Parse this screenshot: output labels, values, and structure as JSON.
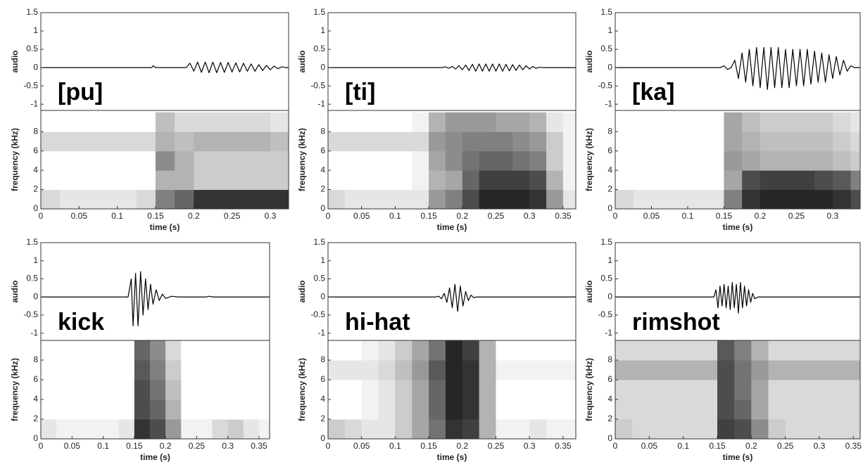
{
  "chart_data": [
    {
      "type": "line",
      "annotation": "[pu]",
      "ylabel": "audio",
      "color": "#000000",
      "xlim": [
        0,
        0.324
      ],
      "ylim": [
        -1.17,
        1.5
      ],
      "yticks": [
        -1,
        -0.5,
        0,
        0.5,
        1,
        1.5
      ],
      "x": [
        0,
        0.145,
        0.147,
        0.15,
        0.19,
        0.195,
        0.2,
        0.205,
        0.21,
        0.215,
        0.22,
        0.225,
        0.23,
        0.235,
        0.24,
        0.245,
        0.25,
        0.255,
        0.26,
        0.265,
        0.27,
        0.275,
        0.28,
        0.285,
        0.29,
        0.295,
        0.3,
        0.305,
        0.31,
        0.315,
        0.32,
        0.324
      ],
      "values": [
        0,
        0,
        0.05,
        0,
        0,
        0.12,
        -0.1,
        0.15,
        -0.13,
        0.15,
        -0.14,
        0.15,
        -0.14,
        0.14,
        -0.13,
        0.14,
        -0.12,
        0.13,
        -0.12,
        0.12,
        -0.1,
        0.1,
        -0.1,
        0.08,
        -0.08,
        0.06,
        -0.06,
        0.04,
        -0.03,
        0.02,
        0,
        0
      ]
    },
    {
      "type": "heatmap",
      "ylabel": "frequency (kHz)",
      "xlabel": "time (s)",
      "xlim": [
        0,
        0.324
      ],
      "xticks": [
        0,
        0.05,
        0.1,
        0.15,
        0.2,
        0.25,
        0.3
      ],
      "ylim": [
        0,
        10.2
      ],
      "yticks": [
        0,
        2,
        4,
        6,
        8
      ],
      "xbins": [
        0,
        0.025,
        0.05,
        0.075,
        0.1,
        0.125,
        0.15,
        0.175,
        0.2,
        0.225,
        0.25,
        0.275,
        0.3,
        0.325,
        0.35,
        0.375
      ],
      "ybins": [
        0,
        2,
        4,
        6,
        8,
        10
      ],
      "values": [
        [
          0.15,
          0.1,
          0.1,
          0.1,
          0.1,
          0.15,
          0.5,
          0.6,
          0.8,
          0.8,
          0.8,
          0.8,
          0.8,
          0.6,
          0.3
        ],
        [
          0,
          0,
          0,
          0,
          0,
          0,
          0.3,
          0.3,
          0.2,
          0.2,
          0.2,
          0.2,
          0.2,
          0.1,
          0.05
        ],
        [
          0,
          0,
          0,
          0,
          0,
          0,
          0.45,
          0.3,
          0.2,
          0.2,
          0.2,
          0.2,
          0.2,
          0.1,
          0.05
        ],
        [
          0.15,
          0.15,
          0.15,
          0.15,
          0.15,
          0.15,
          0.3,
          0.25,
          0.3,
          0.3,
          0.3,
          0.3,
          0.25,
          0.15,
          0.05
        ],
        [
          0,
          0,
          0,
          0,
          0,
          0,
          0.25,
          0.15,
          0.15,
          0.15,
          0.15,
          0.15,
          0.1,
          0.1,
          0.05
        ]
      ]
    },
    {
      "type": "line",
      "annotation": "[ti]",
      "ylabel": "audio",
      "color": "#000000",
      "xlim": [
        0,
        0.369
      ],
      "ylim": [
        -1.17,
        1.5
      ],
      "yticks": [
        -1,
        -0.5,
        0,
        0.5,
        1,
        1.5
      ],
      "x": [
        0,
        0.17,
        0.175,
        0.18,
        0.185,
        0.19,
        0.195,
        0.2,
        0.205,
        0.21,
        0.215,
        0.22,
        0.225,
        0.23,
        0.235,
        0.24,
        0.245,
        0.25,
        0.255,
        0.26,
        0.265,
        0.27,
        0.275,
        0.28,
        0.285,
        0.29,
        0.295,
        0.3,
        0.305,
        0.31,
        0.315,
        0.32,
        0.369
      ],
      "values": [
        0,
        0,
        0.02,
        -0.02,
        0.03,
        -0.04,
        0.05,
        -0.06,
        0.07,
        -0.08,
        0.09,
        -0.1,
        0.1,
        -0.1,
        0.1,
        -0.1,
        0.1,
        -0.1,
        0.1,
        -0.1,
        0.09,
        -0.09,
        0.08,
        -0.08,
        0.07,
        -0.06,
        0.05,
        -0.04,
        0.03,
        -0.02,
        0.01,
        0,
        0
      ]
    },
    {
      "type": "heatmap",
      "ylabel": "frequency (kHz)",
      "xlabel": "time (s)",
      "xlim": [
        0,
        0.369
      ],
      "xticks": [
        0,
        0.05,
        0.1,
        0.15,
        0.2,
        0.25,
        0.3,
        0.35
      ],
      "ylim": [
        0,
        10.2
      ],
      "yticks": [
        0,
        2,
        4,
        6,
        8
      ],
      "xbins": [
        0,
        0.025,
        0.05,
        0.075,
        0.1,
        0.125,
        0.15,
        0.175,
        0.2,
        0.225,
        0.25,
        0.275,
        0.3,
        0.325,
        0.35,
        0.375
      ],
      "ybins": [
        0,
        2,
        4,
        6,
        8,
        10
      ],
      "values": [
        [
          0.15,
          0.1,
          0.1,
          0.1,
          0.1,
          0.1,
          0.4,
          0.5,
          0.7,
          0.85,
          0.85,
          0.85,
          0.8,
          0.4,
          0.1
        ],
        [
          0,
          0,
          0,
          0,
          0,
          0.05,
          0.3,
          0.35,
          0.6,
          0.75,
          0.75,
          0.75,
          0.7,
          0.3,
          0.05
        ],
        [
          0,
          0,
          0,
          0,
          0,
          0.05,
          0.35,
          0.45,
          0.55,
          0.6,
          0.6,
          0.55,
          0.5,
          0.2,
          0.05
        ],
        [
          0.15,
          0.15,
          0.15,
          0.15,
          0.15,
          0.15,
          0.4,
          0.45,
          0.5,
          0.5,
          0.5,
          0.45,
          0.4,
          0.2,
          0.05
        ],
        [
          0,
          0,
          0,
          0,
          0,
          0.05,
          0.3,
          0.4,
          0.4,
          0.4,
          0.35,
          0.35,
          0.3,
          0.1,
          0.05
        ]
      ]
    },
    {
      "type": "line",
      "annotation": "[ka]",
      "ylabel": "audio",
      "color": "#000000",
      "xlim": [
        0,
        0.338
      ],
      "ylim": [
        -1.17,
        1.5
      ],
      "yticks": [
        -1,
        -0.5,
        0,
        0.5,
        1,
        1.5
      ],
      "x": [
        0,
        0.145,
        0.15,
        0.155,
        0.16,
        0.165,
        0.17,
        0.175,
        0.18,
        0.185,
        0.19,
        0.195,
        0.2,
        0.205,
        0.21,
        0.215,
        0.22,
        0.225,
        0.23,
        0.235,
        0.24,
        0.245,
        0.25,
        0.255,
        0.26,
        0.265,
        0.27,
        0.275,
        0.28,
        0.285,
        0.29,
        0.295,
        0.3,
        0.305,
        0.31,
        0.315,
        0.32,
        0.325,
        0.33,
        0.338
      ],
      "values": [
        0,
        0,
        0.05,
        -0.05,
        0,
        0.2,
        -0.3,
        0.4,
        -0.4,
        0.5,
        -0.5,
        0.55,
        -0.55,
        0.55,
        -0.6,
        0.55,
        -0.55,
        0.55,
        -0.55,
        0.5,
        -0.55,
        0.5,
        -0.5,
        0.5,
        -0.5,
        0.5,
        -0.45,
        0.45,
        -0.4,
        0.4,
        -0.4,
        0.35,
        -0.3,
        0.3,
        -0.2,
        0.2,
        -0.1,
        0.05,
        0,
        0
      ]
    },
    {
      "type": "heatmap",
      "ylabel": "frequency (kHz)",
      "xlabel": "time (s)",
      "xlim": [
        0,
        0.338
      ],
      "xticks": [
        0,
        0.05,
        0.1,
        0.15,
        0.2,
        0.25,
        0.3
      ],
      "ylim": [
        0,
        10.2
      ],
      "yticks": [
        0,
        2,
        4,
        6,
        8
      ],
      "xbins": [
        0,
        0.025,
        0.05,
        0.075,
        0.1,
        0.125,
        0.15,
        0.175,
        0.2,
        0.225,
        0.25,
        0.275,
        0.3,
        0.325,
        0.35,
        0.375
      ],
      "ybins": [
        0,
        2,
        4,
        6,
        8,
        10
      ],
      "values": [
        [
          0.15,
          0.1,
          0.1,
          0.1,
          0.1,
          0.1,
          0.5,
          0.8,
          0.85,
          0.85,
          0.85,
          0.85,
          0.8,
          0.7,
          0.3
        ],
        [
          0,
          0,
          0,
          0,
          0,
          0,
          0.35,
          0.7,
          0.75,
          0.75,
          0.75,
          0.7,
          0.65,
          0.5,
          0.2
        ],
        [
          0,
          0,
          0,
          0,
          0,
          0,
          0.4,
          0.35,
          0.3,
          0.3,
          0.3,
          0.3,
          0.25,
          0.2,
          0.1
        ],
        [
          0,
          0,
          0,
          0,
          0,
          0,
          0.35,
          0.3,
          0.25,
          0.25,
          0.25,
          0.25,
          0.2,
          0.15,
          0.1
        ],
        [
          0,
          0,
          0,
          0,
          0,
          0,
          0.35,
          0.25,
          0.2,
          0.2,
          0.2,
          0.2,
          0.15,
          0.1,
          0.05
        ]
      ]
    },
    {
      "type": "line",
      "annotation": "kick",
      "ylabel": "audio",
      "color": "#000000",
      "xlim": [
        0,
        0.367
      ],
      "ylim": [
        -1.2,
        1.5
      ],
      "yticks": [
        -1,
        -0.5,
        0,
        0.5,
        1,
        1.5
      ],
      "x": [
        0,
        0.14,
        0.145,
        0.148,
        0.152,
        0.156,
        0.16,
        0.164,
        0.168,
        0.172,
        0.176,
        0.18,
        0.185,
        0.19,
        0.195,
        0.2,
        0.21,
        0.22,
        0.265,
        0.27,
        0.275,
        0.367
      ],
      "values": [
        0,
        0,
        0.5,
        -0.8,
        0.65,
        -0.8,
        0.7,
        -0.5,
        0.5,
        -0.35,
        0.35,
        -0.2,
        0.2,
        -0.1,
        0.08,
        -0.04,
        0.02,
        0,
        0,
        0.02,
        0,
        0
      ]
    },
    {
      "type": "heatmap",
      "ylabel": "frequency (kHz)",
      "xlabel": "time (s)",
      "xlim": [
        0,
        0.367
      ],
      "xticks": [
        0,
        0.05,
        0.1,
        0.15,
        0.2,
        0.25,
        0.3,
        0.35
      ],
      "ylim": [
        0,
        10
      ],
      "yticks": [
        0,
        2,
        4,
        6,
        8
      ],
      "xbins": [
        0,
        0.025,
        0.05,
        0.075,
        0.1,
        0.125,
        0.15,
        0.175,
        0.2,
        0.225,
        0.25,
        0.275,
        0.3,
        0.325,
        0.35,
        0.375
      ],
      "ybins": [
        0,
        2,
        4,
        6,
        8,
        10
      ],
      "values": [
        [
          0.1,
          0.05,
          0.05,
          0.05,
          0.05,
          0.1,
          0.8,
          0.7,
          0.4,
          0.05,
          0.05,
          0.15,
          0.2,
          0.1,
          0.05
        ],
        [
          0,
          0,
          0,
          0,
          0,
          0,
          0.7,
          0.6,
          0.3,
          0,
          0,
          0,
          0,
          0,
          0
        ],
        [
          0,
          0,
          0,
          0,
          0,
          0,
          0.7,
          0.55,
          0.25,
          0,
          0,
          0,
          0,
          0,
          0
        ],
        [
          0,
          0,
          0,
          0,
          0,
          0,
          0.65,
          0.5,
          0.2,
          0,
          0,
          0,
          0,
          0,
          0
        ],
        [
          0,
          0,
          0,
          0,
          0,
          0,
          0.6,
          0.45,
          0.15,
          0,
          0,
          0,
          0,
          0,
          0
        ]
      ]
    },
    {
      "type": "line",
      "annotation": "hi-hat",
      "ylabel": "audio",
      "color": "#000000",
      "xlim": [
        0,
        0.369
      ],
      "ylim": [
        -1.2,
        1.5
      ],
      "yticks": [
        -1,
        -0.5,
        0,
        0.5,
        1,
        1.5
      ],
      "x": [
        0,
        0.16,
        0.165,
        0.169,
        0.173,
        0.177,
        0.181,
        0.185,
        0.189,
        0.193,
        0.197,
        0.201,
        0.205,
        0.209,
        0.213,
        0.217,
        0.221,
        0.369
      ],
      "values": [
        0,
        0,
        0.02,
        -0.05,
        0.1,
        -0.15,
        0.25,
        -0.3,
        0.35,
        -0.4,
        0.3,
        -0.25,
        0.15,
        -0.1,
        0.05,
        -0.02,
        0,
        0
      ]
    },
    {
      "type": "heatmap",
      "ylabel": "frequency (kHz)",
      "xlabel": "time (s)",
      "xlim": [
        0,
        0.369
      ],
      "xticks": [
        0,
        0.05,
        0.1,
        0.15,
        0.2,
        0.25,
        0.3,
        0.35
      ],
      "ylim": [
        0,
        10
      ],
      "yticks": [
        0,
        2,
        4,
        6,
        8
      ],
      "xbins": [
        0,
        0.025,
        0.05,
        0.075,
        0.1,
        0.125,
        0.15,
        0.175,
        0.2,
        0.225,
        0.25,
        0.275,
        0.3,
        0.325,
        0.35,
        0.375
      ],
      "ybins": [
        0,
        2,
        4,
        6,
        8,
        10
      ],
      "values": [
        [
          0.2,
          0.15,
          0.1,
          0.1,
          0.2,
          0.35,
          0.55,
          0.8,
          0.75,
          0.3,
          0.05,
          0.05,
          0.1,
          0.05,
          0.05
        ],
        [
          0,
          0,
          0.05,
          0.1,
          0.2,
          0.35,
          0.6,
          0.85,
          0.8,
          0.3,
          0,
          0,
          0,
          0,
          0
        ],
        [
          0,
          0,
          0.05,
          0.1,
          0.2,
          0.35,
          0.6,
          0.85,
          0.8,
          0.3,
          0,
          0,
          0,
          0,
          0
        ],
        [
          0.1,
          0.1,
          0.1,
          0.15,
          0.25,
          0.4,
          0.65,
          0.85,
          0.8,
          0.3,
          0.05,
          0.05,
          0.05,
          0.05,
          0.05
        ],
        [
          0,
          0,
          0.05,
          0.1,
          0.2,
          0.35,
          0.55,
          0.85,
          0.75,
          0.3,
          0,
          0,
          0,
          0,
          0
        ]
      ]
    },
    {
      "type": "line",
      "annotation": "rimshot",
      "ylabel": "audio",
      "color": "#000000",
      "xlim": [
        0,
        0.36
      ],
      "ylim": [
        -1.2,
        1.5
      ],
      "yticks": [
        -1,
        -0.5,
        0,
        0.5,
        1,
        1.5
      ],
      "x": [
        0,
        0.145,
        0.148,
        0.151,
        0.154,
        0.157,
        0.16,
        0.163,
        0.166,
        0.169,
        0.172,
        0.175,
        0.178,
        0.181,
        0.184,
        0.187,
        0.19,
        0.193,
        0.196,
        0.199,
        0.202,
        0.205,
        0.21,
        0.36
      ],
      "values": [
        0,
        0,
        0.2,
        -0.3,
        0.3,
        -0.25,
        0.35,
        -0.3,
        0.3,
        -0.35,
        0.4,
        -0.3,
        0.35,
        -0.45,
        0.4,
        -0.3,
        0.3,
        -0.25,
        0.2,
        -0.15,
        0.1,
        -0.05,
        0,
        0
      ]
    },
    {
      "type": "heatmap",
      "ylabel": "frequency (kHz)",
      "xlabel": "time (s)",
      "xlim": [
        0,
        0.36
      ],
      "xticks": [
        0,
        0.05,
        0.1,
        0.15,
        0.2,
        0.25,
        0.3,
        0.35
      ],
      "ylim": [
        0,
        10
      ],
      "yticks": [
        0,
        2,
        4,
        6,
        8
      ],
      "xbins": [
        0,
        0.025,
        0.05,
        0.075,
        0.1,
        0.125,
        0.15,
        0.175,
        0.2,
        0.225,
        0.25,
        0.275,
        0.3,
        0.325,
        0.35,
        0.375
      ],
      "ybins": [
        0,
        2,
        4,
        6,
        8,
        10
      ],
      "values": [
        [
          0.2,
          0.15,
          0.15,
          0.15,
          0.15,
          0.15,
          0.75,
          0.7,
          0.45,
          0.2,
          0.15,
          0.15,
          0.15,
          0.15,
          0.15
        ],
        [
          0.15,
          0.15,
          0.15,
          0.15,
          0.15,
          0.15,
          0.7,
          0.6,
          0.35,
          0.15,
          0.15,
          0.15,
          0.15,
          0.15,
          0.15
        ],
        [
          0.15,
          0.15,
          0.15,
          0.15,
          0.15,
          0.15,
          0.7,
          0.55,
          0.35,
          0.15,
          0.15,
          0.15,
          0.15,
          0.15,
          0.15
        ],
        [
          0.3,
          0.3,
          0.3,
          0.3,
          0.3,
          0.3,
          0.7,
          0.55,
          0.4,
          0.3,
          0.3,
          0.3,
          0.3,
          0.3,
          0.3
        ],
        [
          0.15,
          0.15,
          0.15,
          0.15,
          0.15,
          0.15,
          0.65,
          0.5,
          0.3,
          0.15,
          0.15,
          0.15,
          0.15,
          0.15,
          0.15
        ]
      ]
    }
  ]
}
